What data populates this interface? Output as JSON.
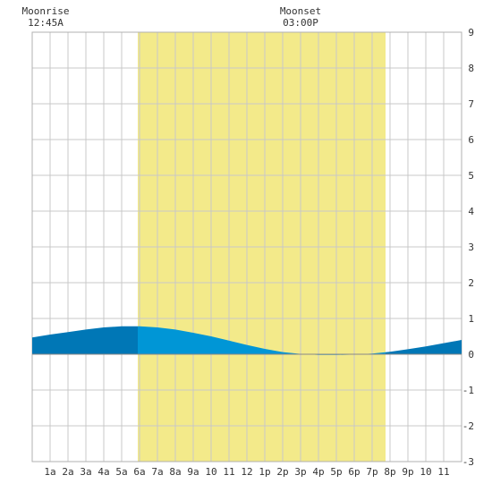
{
  "chart_data": {
    "type": "area",
    "title": "",
    "xlabel": "",
    "ylabel": "",
    "xlim": [
      0,
      24
    ],
    "ylim": [
      -3,
      9
    ],
    "grid": true,
    "x_ticks": [
      {
        "x": 1,
        "label": "1a"
      },
      {
        "x": 2,
        "label": "2a"
      },
      {
        "x": 3,
        "label": "3a"
      },
      {
        "x": 4,
        "label": "4a"
      },
      {
        "x": 5,
        "label": "5a"
      },
      {
        "x": 6,
        "label": "6a"
      },
      {
        "x": 7,
        "label": "7a"
      },
      {
        "x": 8,
        "label": "8a"
      },
      {
        "x": 9,
        "label": "9a"
      },
      {
        "x": 10,
        "label": "10"
      },
      {
        "x": 11,
        "label": "11"
      },
      {
        "x": 12,
        "label": "12"
      },
      {
        "x": 13,
        "label": "1p"
      },
      {
        "x": 14,
        "label": "2p"
      },
      {
        "x": 15,
        "label": "3p"
      },
      {
        "x": 16,
        "label": "4p"
      },
      {
        "x": 17,
        "label": "5p"
      },
      {
        "x": 18,
        "label": "6p"
      },
      {
        "x": 19,
        "label": "7p"
      },
      {
        "x": 20,
        "label": "8p"
      },
      {
        "x": 21,
        "label": "9p"
      },
      {
        "x": 22,
        "label": "10"
      },
      {
        "x": 23,
        "label": "11"
      }
    ],
    "y_ticks": [
      9,
      8,
      7,
      6,
      5,
      4,
      3,
      2,
      1,
      0,
      -1,
      -2,
      -3
    ],
    "daylight": {
      "start": 5.9,
      "end": 19.75,
      "color": "#f3ea8a"
    },
    "series": [
      {
        "x": [
          0,
          1,
          2,
          3,
          4,
          5,
          6,
          7,
          8,
          9,
          10,
          11,
          12,
          13,
          14,
          15,
          16,
          17,
          18,
          19,
          20,
          21,
          22,
          23,
          24
        ],
        "y": [
          0.47,
          0.55,
          0.62,
          0.69,
          0.75,
          0.78,
          0.78,
          0.75,
          0.69,
          0.6,
          0.5,
          0.38,
          0.26,
          0.15,
          0.06,
          0.01,
          -0.02,
          -0.02,
          -0.01,
          0.02,
          0.07,
          0.14,
          0.22,
          0.31,
          0.4
        ],
        "color_day": "#0096d6",
        "color_night": "#0077b6"
      }
    ],
    "moonrise": {
      "label": "Moonrise",
      "time": "12:45A",
      "x": 0.75
    },
    "moonset": {
      "label": "Moonset",
      "time": "03:00P",
      "x": 15.0
    }
  }
}
